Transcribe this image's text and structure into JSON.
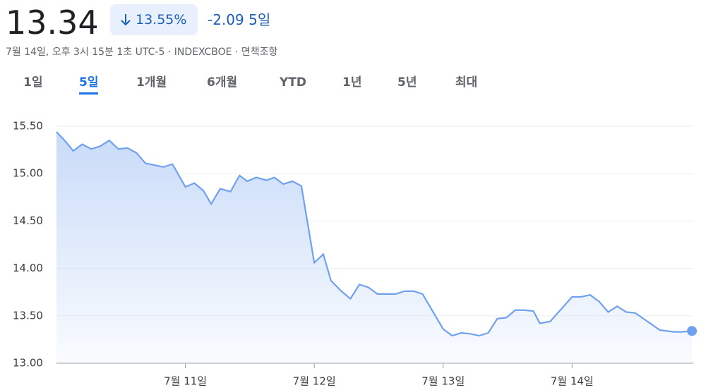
{
  "header": {
    "price": "13.34",
    "change_pct": "13.55%",
    "change": "-2.09",
    "period": "5일",
    "timestamp": "7월 14일, 오후 3시 15분 1초 UTC-5 · INDEXCBOE · 면책조항",
    "tabs": [
      "1일",
      "5일",
      "1개월",
      "6개월",
      "YTD",
      "1년",
      "5년",
      "최대"
    ],
    "selected_tab": 1
  },
  "chart_data": {
    "type": "line",
    "color": "#6fa1f0",
    "grid": true,
    "x": [
      0,
      0.07,
      0.13,
      0.2,
      0.27,
      0.34,
      0.41,
      0.48,
      0.55,
      0.62,
      0.69,
      0.76,
      0.83,
      0.9,
      1.0,
      1.07,
      1.14,
      1.2,
      1.27,
      1.35,
      1.42,
      1.48,
      1.55,
      1.63,
      1.69,
      1.76,
      1.83,
      1.9,
      2.0,
      2.07,
      2.13,
      2.21,
      2.28,
      2.35,
      2.42,
      2.49,
      2.56,
      2.63,
      2.7,
      2.77,
      2.84,
      3.0,
      3.07,
      3.14,
      3.21,
      3.28,
      3.35,
      3.42,
      3.49,
      3.56,
      3.63,
      3.7,
      3.75,
      3.83,
      4.0,
      4.07,
      4.14,
      4.21,
      4.28,
      4.35,
      4.42,
      4.49,
      4.68,
      4.79,
      4.85,
      4.93
    ],
    "values": [
      15.44,
      15.34,
      15.24,
      15.31,
      15.26,
      15.29,
      15.35,
      15.26,
      15.27,
      15.22,
      15.11,
      15.09,
      15.07,
      15.1,
      14.86,
      14.9,
      14.82,
      14.68,
      14.84,
      14.81,
      14.98,
      14.92,
      14.96,
      14.93,
      14.96,
      14.89,
      14.92,
      14.87,
      14.06,
      14.15,
      13.87,
      13.76,
      13.68,
      13.83,
      13.8,
      13.73,
      13.73,
      13.73,
      13.76,
      13.76,
      13.73,
      13.36,
      13.29,
      13.32,
      13.31,
      13.29,
      13.32,
      13.47,
      13.48,
      13.56,
      13.56,
      13.55,
      13.42,
      13.44,
      13.7,
      13.7,
      13.72,
      13.65,
      13.54,
      13.6,
      13.54,
      13.53,
      13.35,
      13.33,
      13.33,
      13.34
    ],
    "xlim": [
      0,
      4.94
    ],
    "xticks": [
      {
        "value": 1,
        "label": "7월 11일"
      },
      {
        "value": 2,
        "label": "7월 12일"
      },
      {
        "value": 3,
        "label": "7월 13일"
      },
      {
        "value": 4,
        "label": "7월 14일"
      }
    ],
    "ylim": [
      13,
      15.5
    ],
    "yticks": [
      {
        "value": 13,
        "label": "13.00"
      },
      {
        "value": 13.5,
        "label": "13.50"
      },
      {
        "value": 14,
        "label": "14.00"
      },
      {
        "value": 14.5,
        "label": "14.50"
      },
      {
        "value": 15,
        "label": "15.00"
      },
      {
        "value": 15.5,
        "label": "15.50"
      }
    ]
  }
}
